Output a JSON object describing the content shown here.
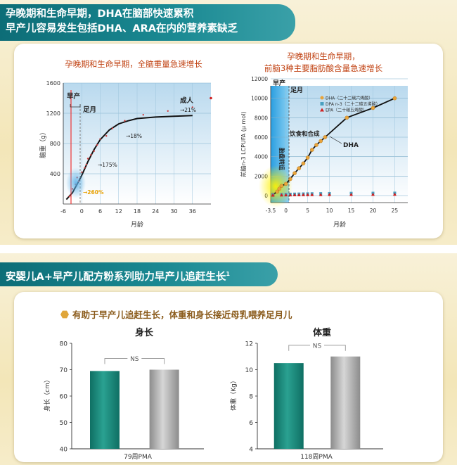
{
  "banner1": {
    "line1": "孕晚期和生命早期，DHA在脑部快速累积",
    "line2": "早产儿容易发生包括DHA、ARA在内的营养素缺乏"
  },
  "banner2": {
    "text": "安婴儿A+早产儿配方粉系列助力早产儿追赶生长",
    "superscript": "1"
  },
  "subtitle": "有助于早产儿追赶生长，体重和身长接近母乳喂养足月儿",
  "colors": {
    "teal": "#1a8a7e",
    "gray": "#a8a8a8",
    "orange": "#e8a33a",
    "banner": "#0d6d77"
  },
  "chart_data": [
    {
      "type": "scatter",
      "title": "孕晚期和生命早期，全脑重量急速增长",
      "xlabel": "月龄",
      "ylabel": "脑重（g）",
      "xlim": [
        -6,
        42
      ],
      "ylim": [
        0,
        1600
      ],
      "xticks": [
        "-6",
        "0",
        "6",
        "12",
        "18",
        "24",
        "30",
        "36"
      ],
      "yticks": [
        "400",
        "800",
        "1200",
        "1600"
      ],
      "annotations": [
        "早产",
        "足月",
        "成人",
        "→21%",
        "→18%",
        "→175%",
        "→260%"
      ],
      "curve": {
        "x": [
          -5,
          -3,
          -1,
          0,
          2,
          4,
          6,
          9,
          12,
          15,
          18,
          24,
          30,
          36
        ],
        "y": [
          60,
          150,
          300,
          380,
          560,
          720,
          850,
          980,
          1060,
          1100,
          1130,
          1150,
          1160,
          1170
        ]
      },
      "points": {
        "x": [
          -4,
          -3,
          -2,
          -1.5,
          -1,
          0,
          1,
          1.5,
          2,
          3,
          4,
          5,
          6,
          8,
          10,
          14,
          20,
          28,
          36
        ],
        "y": [
          100,
          200,
          260,
          350,
          300,
          420,
          480,
          520,
          600,
          650,
          700,
          780,
          860,
          900,
          1000,
          1100,
          1180,
          1230,
          1280
        ]
      },
      "adult_point": {
        "x": 42,
        "y": 1400
      }
    },
    {
      "type": "scatter",
      "title": "孕晚期和生命早期，",
      "title2": "前脑3种主要脂肪酸含量急速增长",
      "xlabel": "月龄",
      "ylabel": "前脑n-3 LCPUFA (μ mol)",
      "xlim": [
        -3.5,
        28
      ],
      "ylim": [
        0,
        12000
      ],
      "xticks": [
        "-3.5",
        "0",
        "5",
        "10",
        "15",
        "20",
        "25"
      ],
      "yticks": [
        "0",
        "2000",
        "4000",
        "6000",
        "8000",
        "10000",
        "12000"
      ],
      "annotations": [
        "早产",
        "足月",
        "饮食和合成",
        "DHA",
        "胎盘转运"
      ],
      "legend": [
        "DHA（二十二碳六烯酸）",
        "DPA n-3（二十二碳五烯酸）",
        "EPA（二十碳五烯酸）"
      ],
      "series": [
        {
          "name": "DHA",
          "x": [
            -3,
            -2,
            -1.5,
            -1,
            0,
            1,
            2,
            3,
            4,
            5,
            6,
            7,
            8,
            9,
            14,
            20,
            25
          ],
          "y": [
            100,
            400,
            700,
            1000,
            1200,
            1700,
            2300,
            2800,
            3300,
            3900,
            4700,
            5200,
            5600,
            6000,
            8000,
            9000,
            10000
          ]
        },
        {
          "name": "DPA n-3",
          "x": [
            -3,
            -1,
            0,
            1,
            2,
            3,
            4,
            5,
            6,
            8,
            10,
            15,
            20,
            25
          ],
          "y": [
            100,
            120,
            130,
            150,
            160,
            170,
            180,
            190,
            200,
            210,
            220,
            240,
            250,
            260
          ]
        },
        {
          "name": "EPA",
          "x": [
            -3,
            -1,
            0,
            1,
            2,
            3,
            4,
            5,
            6,
            8,
            10,
            15,
            20,
            25
          ],
          "y": [
            40,
            50,
            60,
            60,
            70,
            70,
            80,
            80,
            90,
            90,
            100,
            110,
            120,
            130
          ]
        }
      ]
    },
    {
      "type": "bar",
      "title": "身长",
      "ylabel": "身长（cm）",
      "xlabel": "79周PMA",
      "categories": [
        "",
        ""
      ],
      "values": [
        69.5,
        70
      ],
      "ylim": [
        40,
        80
      ],
      "yticks": [
        "40",
        "50",
        "60",
        "70",
        "80"
      ],
      "annotation": "NS"
    },
    {
      "type": "bar",
      "title": "体重",
      "ylabel": "体重（Kg）",
      "xlabel": "118周PMA",
      "categories": [
        "",
        ""
      ],
      "values": [
        10.5,
        11
      ],
      "ylim": [
        4,
        12
      ],
      "yticks": [
        "4",
        "6",
        "8",
        "10",
        "12"
      ],
      "annotation": "NS"
    }
  ]
}
